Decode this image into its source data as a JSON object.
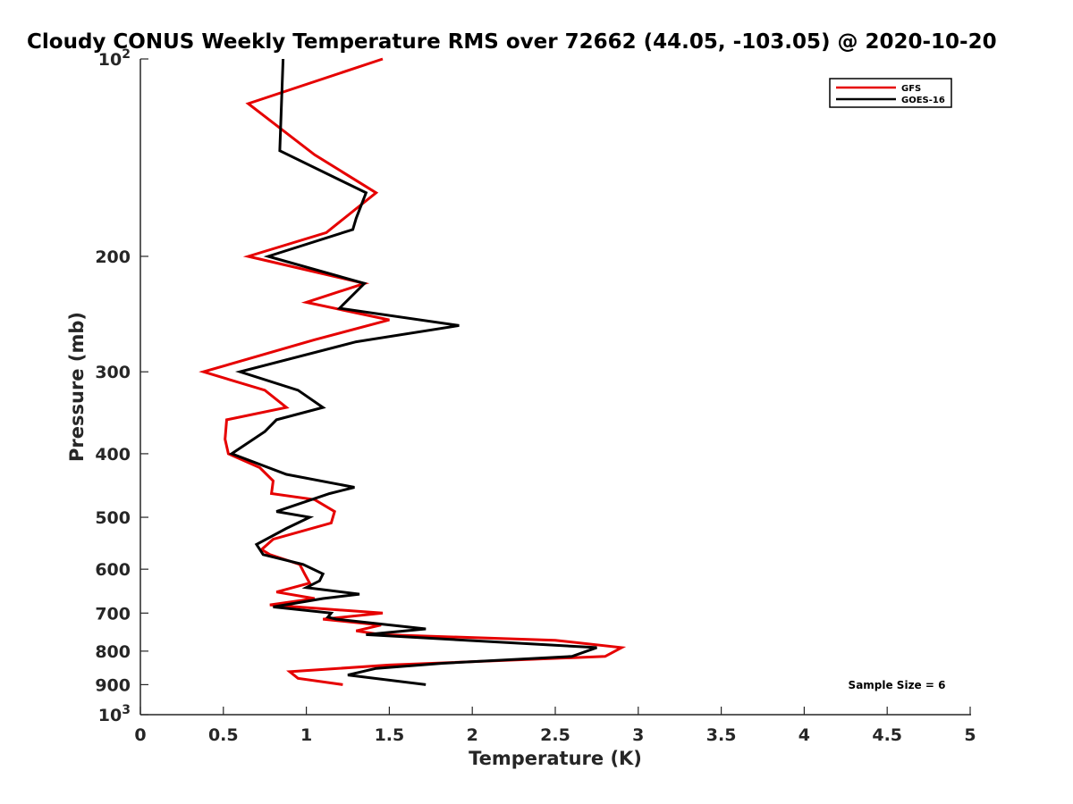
{
  "chart_data": {
    "type": "line",
    "title": "Cloudy CONUS Weekly Temperature RMS over 72662 (44.05, -103.05) @ 2020-10-20",
    "xlabel": "Temperature (K)",
    "ylabel": "Pressure (mb)",
    "xlim": [
      0,
      5
    ],
    "ylim": [
      100,
      1000
    ],
    "yscale": "log",
    "y_reversed": true,
    "grid": false,
    "legend_position": "top-right",
    "x_ticks": [
      "0",
      "0.5",
      "1",
      "1.5",
      "2",
      "2.5",
      "3",
      "3.5",
      "4",
      "4.5",
      "5"
    ],
    "y_ticks": [
      {
        "value": 100,
        "base": "10",
        "exp": "2"
      },
      {
        "value": 200,
        "label": "200"
      },
      {
        "value": 300,
        "label": "300"
      },
      {
        "value": 400,
        "label": "400"
      },
      {
        "value": 500,
        "label": "500"
      },
      {
        "value": 600,
        "label": "600"
      },
      {
        "value": 700,
        "label": "700"
      },
      {
        "value": 800,
        "label": "800"
      },
      {
        "value": 900,
        "label": "900"
      },
      {
        "value": 1000,
        "base": "10",
        "exp": "3"
      }
    ],
    "annotation": "Sample Size = 6",
    "series": [
      {
        "name": "GFS",
        "color": "#e60000",
        "points": [
          [
            1.46,
            100
          ],
          [
            0.65,
            117
          ],
          [
            1.05,
            140
          ],
          [
            1.42,
            160
          ],
          [
            1.12,
            184
          ],
          [
            0.65,
            200
          ],
          [
            1.35,
            220
          ],
          [
            1.0,
            235
          ],
          [
            1.5,
            250
          ],
          [
            1.05,
            268
          ],
          [
            0.38,
            300
          ],
          [
            0.75,
            320
          ],
          [
            0.88,
            340
          ],
          [
            0.52,
            355
          ],
          [
            0.51,
            380
          ],
          [
            0.53,
            400
          ],
          [
            0.72,
            420
          ],
          [
            0.8,
            440
          ],
          [
            0.79,
            460
          ],
          [
            1.05,
            470
          ],
          [
            1.17,
            490
          ],
          [
            1.15,
            510
          ],
          [
            0.8,
            540
          ],
          [
            0.73,
            560
          ],
          [
            0.78,
            570
          ],
          [
            0.96,
            590
          ],
          [
            0.99,
            610
          ],
          [
            1.02,
            630
          ],
          [
            0.82,
            650
          ],
          [
            1.05,
            665
          ],
          [
            0.78,
            680
          ],
          [
            1.46,
            700
          ],
          [
            1.1,
            715
          ],
          [
            1.45,
            730
          ],
          [
            1.3,
            745
          ],
          [
            1.45,
            755
          ],
          [
            2.5,
            770
          ],
          [
            2.9,
            790
          ],
          [
            2.8,
            815
          ],
          [
            1.5,
            840
          ],
          [
            0.9,
            860
          ],
          [
            0.95,
            880
          ],
          [
            1.22,
            900
          ]
        ]
      },
      {
        "name": "GOES-16",
        "color": "#000000",
        "points": [
          [
            0.86,
            100
          ],
          [
            0.84,
            138
          ],
          [
            1.36,
            160
          ],
          [
            1.3,
            175
          ],
          [
            1.28,
            182
          ],
          [
            0.77,
            200
          ],
          [
            1.35,
            220
          ],
          [
            1.2,
            240
          ],
          [
            1.92,
            255
          ],
          [
            1.3,
            270
          ],
          [
            0.6,
            300
          ],
          [
            0.95,
            320
          ],
          [
            1.1,
            340
          ],
          [
            0.82,
            355
          ],
          [
            0.75,
            370
          ],
          [
            0.55,
            400
          ],
          [
            0.88,
            430
          ],
          [
            1.29,
            450
          ],
          [
            1.14,
            460
          ],
          [
            0.82,
            490
          ],
          [
            1.02,
            500
          ],
          [
            0.88,
            520
          ],
          [
            0.7,
            550
          ],
          [
            0.74,
            570
          ],
          [
            0.98,
            590
          ],
          [
            1.1,
            610
          ],
          [
            1.08,
            625
          ],
          [
            1.0,
            640
          ],
          [
            1.32,
            655
          ],
          [
            1.1,
            665
          ],
          [
            0.8,
            685
          ],
          [
            1.15,
            700
          ],
          [
            1.13,
            710
          ],
          [
            1.18,
            715
          ],
          [
            1.72,
            740
          ],
          [
            1.36,
            755
          ],
          [
            2.75,
            790
          ],
          [
            2.6,
            815
          ],
          [
            1.82,
            835
          ],
          [
            1.42,
            850
          ],
          [
            1.25,
            870
          ],
          [
            1.72,
            900
          ]
        ]
      }
    ]
  }
}
